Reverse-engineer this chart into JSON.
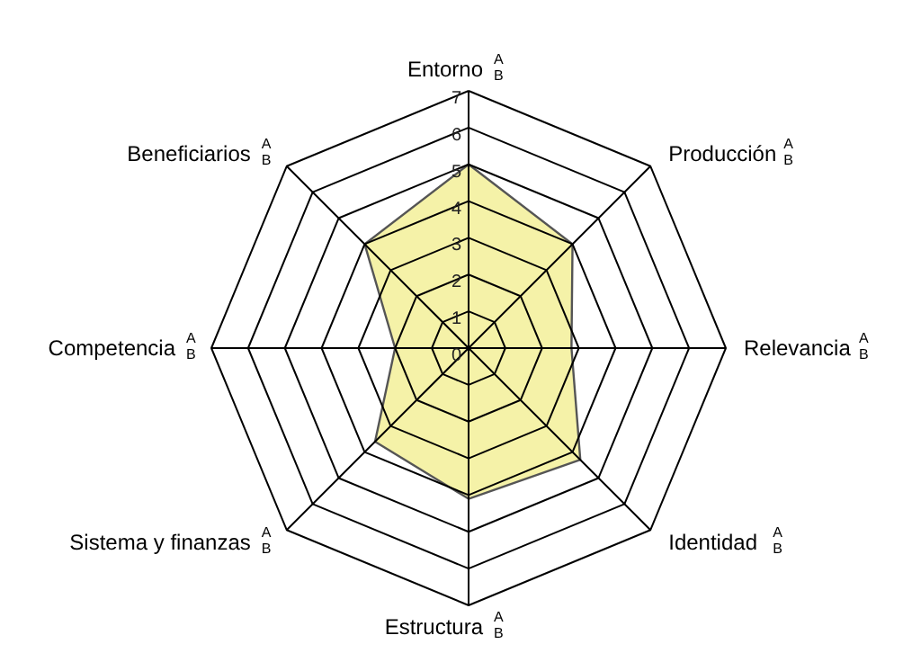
{
  "chart_data": {
    "type": "radar",
    "categories": [
      "Entorno $^{A}$$_{B}$",
      "Producción $^{A}$$_{B}$",
      "Relevancia $^{A}$$_{B}$",
      "Identidad $^{A}$$_{B}$",
      "Estructura $^{A}$$_{B}$",
      "Sistema y finanzas $^{A}$$_{B}$",
      "Competencia $^{A}$$_{B}$",
      "Beneficiarios $^{A}$$_{B}$"
    ],
    "series": [
      {
        "color": "#f5f2a8",
        "values": [
          5,
          4,
          2.8,
          4.3,
          4.1,
          3.6,
          2,
          4
        ]
      }
    ],
    "ylim": [
      0,
      7
    ],
    "yticks": [
      0,
      1,
      2,
      3,
      4,
      5,
      6,
      7
    ],
    "grid": true
  }
}
